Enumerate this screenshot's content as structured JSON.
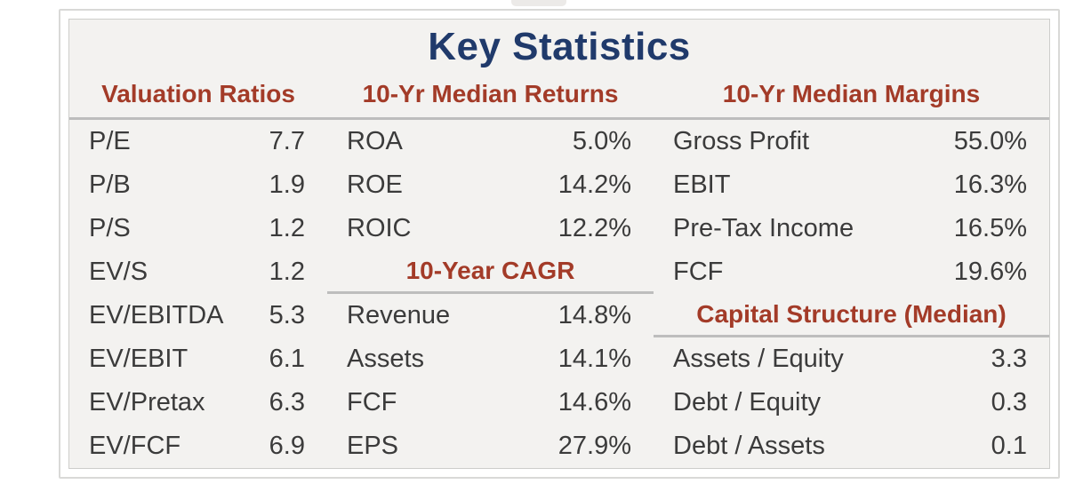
{
  "colors": {
    "title_color": "#203a6b",
    "header_color": "#a33b28",
    "text_color": "#3b3b3b",
    "table_bg": "#f3f2f0",
    "divider_color": "#bdbdbd",
    "border_color": "#d9d9d7"
  },
  "chart_data": {
    "type": "table",
    "title": "Key Statistics",
    "columns": [
      {
        "header": "Valuation Ratios",
        "sections": [
          {
            "rows": [
              {
                "label": "P/E",
                "value": "7.7"
              },
              {
                "label": "P/B",
                "value": "1.9"
              },
              {
                "label": "P/S",
                "value": "1.2"
              },
              {
                "label": "EV/S",
                "value": "1.2"
              },
              {
                "label": "EV/EBITDA",
                "value": "5.3"
              },
              {
                "label": "EV/EBIT",
                "value": "6.1"
              },
              {
                "label": "EV/Pretax",
                "value": "6.3"
              },
              {
                "label": "EV/FCF",
                "value": "6.9"
              }
            ]
          }
        ]
      },
      {
        "header": "10-Yr Median Returns",
        "sections": [
          {
            "rows": [
              {
                "label": "ROA",
                "value": "5.0%"
              },
              {
                "label": "ROE",
                "value": "14.2%"
              },
              {
                "label": "ROIC",
                "value": "12.2%"
              }
            ]
          },
          {
            "subheader": "10-Year CAGR",
            "rows": [
              {
                "label": "Revenue",
                "value": "14.8%"
              },
              {
                "label": "Assets",
                "value": "14.1%"
              },
              {
                "label": "FCF",
                "value": "14.6%"
              },
              {
                "label": "EPS",
                "value": "27.9%"
              }
            ]
          }
        ]
      },
      {
        "header": "10-Yr Median Margins",
        "sections": [
          {
            "rows": [
              {
                "label": "Gross Profit",
                "value": "55.0%"
              },
              {
                "label": "EBIT",
                "value": "16.3%"
              },
              {
                "label": "Pre-Tax Income",
                "value": "16.5%"
              },
              {
                "label": "FCF",
                "value": "19.6%"
              }
            ]
          },
          {
            "subheader": "Capital Structure (Median)",
            "rows": [
              {
                "label": "Assets / Equity",
                "value": "3.3"
              },
              {
                "label": "Debt / Equity",
                "value": "0.3"
              },
              {
                "label": "Debt / Assets",
                "value": "0.1"
              }
            ]
          }
        ]
      }
    ]
  }
}
